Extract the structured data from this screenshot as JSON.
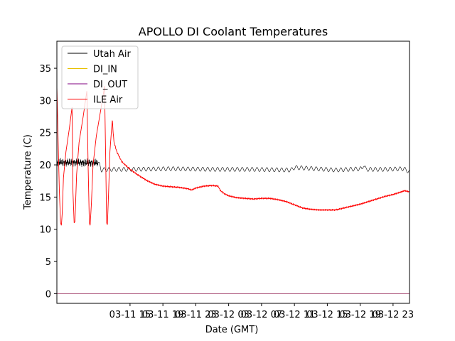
{
  "chart_data": {
    "type": "line",
    "title": "APOLLO DI Coolant Temperatures",
    "xlabel": "Date (GMT)",
    "ylabel": "Temperature (C)",
    "xlim": [
      6.1,
      49.0
    ],
    "ylim": [
      -1.5,
      39.2
    ],
    "x_unit": "hours since 03-11 00:00 GMT",
    "x_ticks": [
      {
        "x": 15,
        "label": "03-11 15"
      },
      {
        "x": 19,
        "label": "03-11 19"
      },
      {
        "x": 23,
        "label": "03-11 23"
      },
      {
        "x": 27,
        "label": "03-12 03"
      },
      {
        "x": 31,
        "label": "03-12 07"
      },
      {
        "x": 35,
        "label": "03-12 11"
      },
      {
        "x": 39,
        "label": "03-12 15"
      },
      {
        "x": 43,
        "label": "03-12 19"
      },
      {
        "x": 47,
        "label": "03-12 23"
      }
    ],
    "y_ticks": [
      0,
      5,
      10,
      15,
      20,
      25,
      30,
      35
    ],
    "legend_position": "top-left",
    "series": [
      {
        "name": "Utah Air",
        "color": "#000000",
        "stroke_width": 0.6,
        "generator": "utah",
        "points": [
          [
            6.1,
            20.4
          ],
          [
            11.1,
            20.3
          ],
          [
            11.3,
            20.0
          ],
          [
            11.5,
            19.2
          ],
          [
            12,
            19.3
          ],
          [
            15,
            19.3
          ],
          [
            20,
            19.4
          ],
          [
            25,
            19.3
          ],
          [
            30,
            19.3
          ],
          [
            34.6,
            19.2
          ],
          [
            35,
            19.6
          ],
          [
            40,
            19.2
          ],
          [
            43.2,
            19.4
          ],
          [
            43.4,
            20.0
          ],
          [
            43.7,
            19.3
          ],
          [
            46,
            19.3
          ],
          [
            48.3,
            19.4
          ],
          [
            48.9,
            19.0
          ],
          [
            49,
            18.9
          ]
        ]
      },
      {
        "name": "DI_IN",
        "color": "#e8c000",
        "stroke_width": 0.6,
        "points": [
          [
            6.1,
            0
          ],
          [
            49,
            0
          ]
        ]
      },
      {
        "name": "DI_OUT",
        "color": "#800080",
        "stroke_width": 0.6,
        "points": [
          [
            6.1,
            0
          ],
          [
            49,
            0
          ]
        ]
      },
      {
        "name": "ILE Air",
        "color": "#ff0000",
        "stroke_width": 0.9,
        "generator": "ile",
        "points": [
          [
            6.1,
            32.2
          ],
          [
            6.25,
            24.0
          ],
          [
            6.4,
            16.0
          ],
          [
            6.55,
            11.0
          ],
          [
            6.65,
            10.6
          ],
          [
            6.75,
            12.5
          ],
          [
            6.9,
            18.0
          ],
          [
            7.2,
            22.0
          ],
          [
            7.6,
            25.5
          ],
          [
            7.95,
            29.0
          ],
          [
            8.05,
            16.0
          ],
          [
            8.2,
            11.0
          ],
          [
            8.3,
            11.2
          ],
          [
            8.5,
            18.5
          ],
          [
            8.8,
            23.5
          ],
          [
            9.3,
            27.5
          ],
          [
            9.75,
            31.5
          ],
          [
            9.9,
            20.0
          ],
          [
            10.05,
            11.0
          ],
          [
            10.15,
            10.6
          ],
          [
            10.3,
            14.0
          ],
          [
            10.5,
            20.0
          ],
          [
            10.9,
            24.5
          ],
          [
            11.5,
            29.0
          ],
          [
            11.9,
            32.2
          ],
          [
            12.05,
            20.0
          ],
          [
            12.15,
            11.0
          ],
          [
            12.25,
            10.7
          ],
          [
            12.4,
            16.0
          ],
          [
            12.55,
            22.0
          ],
          [
            12.75,
            25.5
          ],
          [
            12.85,
            27.0
          ],
          [
            12.95,
            25.0
          ],
          [
            13.05,
            23.5
          ],
          [
            13.4,
            22.0
          ],
          [
            14,
            20.5
          ],
          [
            15,
            19.3
          ],
          [
            16,
            18.4
          ],
          [
            17,
            17.6
          ],
          [
            18,
            17.0
          ],
          [
            19,
            16.7
          ],
          [
            20,
            16.6
          ],
          [
            21,
            16.5
          ],
          [
            22,
            16.3
          ],
          [
            22.5,
            16.1
          ],
          [
            23,
            16.4
          ],
          [
            24,
            16.7
          ],
          [
            25,
            16.8
          ],
          [
            25.7,
            16.7
          ],
          [
            26,
            16.0
          ],
          [
            26.5,
            15.5
          ],
          [
            27,
            15.2
          ],
          [
            28,
            14.9
          ],
          [
            29,
            14.8
          ],
          [
            30,
            14.7
          ],
          [
            31,
            14.8
          ],
          [
            32,
            14.8
          ],
          [
            33,
            14.6
          ],
          [
            34,
            14.3
          ],
          [
            35,
            13.8
          ],
          [
            36,
            13.3
          ],
          [
            37,
            13.1
          ],
          [
            38,
            13.0
          ],
          [
            39,
            13.0
          ],
          [
            40,
            13.0
          ],
          [
            41,
            13.3
          ],
          [
            42,
            13.6
          ],
          [
            43,
            13.9
          ],
          [
            44,
            14.3
          ],
          [
            45,
            14.7
          ],
          [
            46,
            15.1
          ],
          [
            47,
            15.4
          ],
          [
            48,
            15.8
          ],
          [
            48.4,
            16.0
          ],
          [
            49,
            15.8
          ]
        ]
      }
    ]
  }
}
